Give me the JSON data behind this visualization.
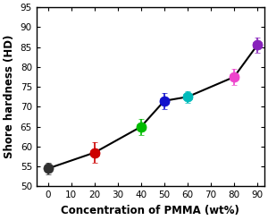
{
  "x": [
    0,
    20,
    40,
    50,
    60,
    80,
    90
  ],
  "y": [
    54.5,
    58.5,
    65.0,
    71.5,
    72.5,
    77.5,
    85.5
  ],
  "yerr": [
    1.5,
    2.5,
    2.0,
    2.0,
    1.5,
    2.0,
    2.0
  ],
  "xerr": [
    1.0,
    2.0,
    2.0,
    2.0,
    2.0,
    2.0,
    2.0
  ],
  "colors": [
    "#303030",
    "#cc0000",
    "#00bb00",
    "#1111cc",
    "#00bbbb",
    "#ee44cc",
    "#8822bb"
  ],
  "marker_size": 8,
  "line_color": "black",
  "line_width": 1.5,
  "xlabel": "Concentration of PMMA (wt%)",
  "ylabel": "Shore hardness (HD)",
  "xlim": [
    -5,
    93
  ],
  "ylim": [
    50,
    95
  ],
  "xticks": [
    0,
    10,
    20,
    30,
    40,
    50,
    60,
    70,
    80,
    90
  ],
  "yticks": [
    50,
    55,
    60,
    65,
    70,
    75,
    80,
    85,
    90,
    95
  ],
  "background_color": "#ffffff",
  "xlabel_fontsize": 8.5,
  "ylabel_fontsize": 8.5,
  "tick_fontsize": 7.5
}
